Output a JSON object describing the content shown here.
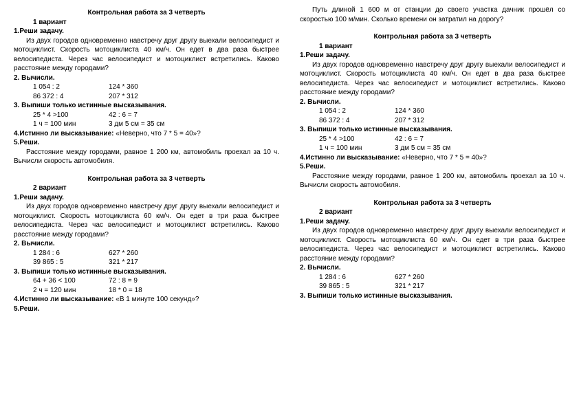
{
  "title": "Контрольная работа за 3 четверть",
  "v1": {
    "variant": "1 вариант",
    "t1h": "1.Реши задачу.",
    "t1": "Из двух городов одновременно навстречу друг другу выехали велосипедист и мотоциклист. Скорость мотоциклиста 40 км/ч. Он едет в два раза быстрее велосипедиста. Через час велосипедист и мотоциклист встретились. Каково расстояние между городами?",
    "t2h": "2. Вычисли.",
    "c1a": "1 054 : 2",
    "c1b": "124 * 360",
    "c2a": "86 372 : 4",
    "c2b": "207 * 312",
    "t3h": "3. Выпиши только истинные высказывания.",
    "s1a": "25 * 4 >100",
    "s1b": "42 : 6 = 7",
    "s2a": "1 ч = 100 мин",
    "s2b": "3 дм 5 см = 35 см",
    "t4h": "4.Истинно ли высказывание:",
    "t4r": " «Неверно, что 7 * 5 = 40»?",
    "t5h": "5.Реши.",
    "t5": "Расстояние между городами, равное 1 200 км, автомобиль проехал за 10 ч. Вычисли скорость автомобиля."
  },
  "v2": {
    "variant": "2 вариант",
    "t1h": "1.Реши задачу.",
    "t1": "Из двух городов одновременно навстречу друг другу выехали велосипедист и мотоциклист. Скорость мотоциклиста 60 км/ч. Он едет в три раза быстрее велосипедиста. Через час велосипедист и мотоциклист встретились. Каково расстояние между городами?",
    "t2h": "2. Вычисли.",
    "c1a": "1 284 : 6",
    "c1b": "627 * 260",
    "c2a": "39 865 : 5",
    "c2b": "321 * 217",
    "t3h": "3. Выпиши только истинные высказывания.",
    "s1a": "64 + 36  <  100",
    "s1b": "72 : 8  =  9",
    "s2a": "2 ч = 120 мин",
    "s2b": "18 * 0 = 18",
    "t4h": "4.Истинно ли высказывание:",
    "t4r": " «В 1 минуте 100 секунд»?",
    "t5h": "5.Реши.",
    "t5": "Путь длиной 1 600 м от станции до своего участка дачник прошёл со скоростью 100 м/мин. Сколько времени он затратил на дорогу?"
  }
}
